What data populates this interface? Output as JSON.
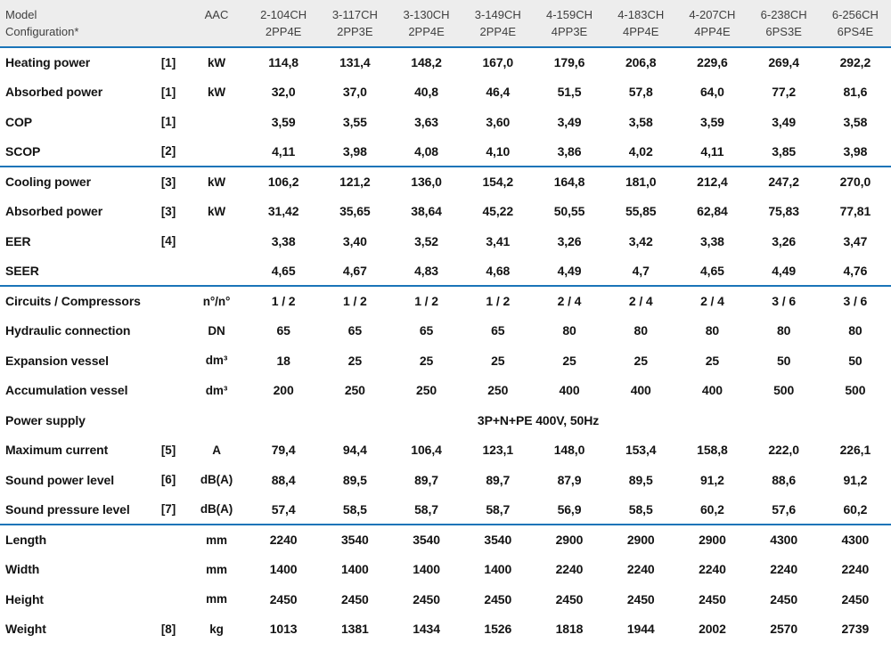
{
  "colors": {
    "header_bg": "#ededed",
    "divider": "#1a74b8",
    "body_text": "#131313",
    "header_text": "#3f3f3f"
  },
  "header": {
    "row_label_line1": "Model",
    "row_label_line2": "Configuration*",
    "aac_label": "AAC",
    "models": [
      {
        "name": "2-104CH",
        "config": "2PP4E"
      },
      {
        "name": "3-117CH",
        "config": "2PP3E"
      },
      {
        "name": "3-130CH",
        "config": "2PP4E"
      },
      {
        "name": "3-149CH",
        "config": "2PP4E"
      },
      {
        "name": "4-159CH",
        "config": "4PP3E"
      },
      {
        "name": "4-183CH",
        "config": "4PP4E"
      },
      {
        "name": "4-207CH",
        "config": "4PP4E"
      },
      {
        "name": "6-238CH",
        "config": "6PS3E"
      },
      {
        "name": "6-256CH",
        "config": "6PS4E"
      }
    ]
  },
  "sections": [
    {
      "name": "heating-performance",
      "rows": [
        {
          "label": "Heating power",
          "note": "[1]",
          "unit": "kW",
          "values": [
            "114,8",
            "131,4",
            "148,2",
            "167,0",
            "179,6",
            "206,8",
            "229,6",
            "269,4",
            "292,2"
          ]
        },
        {
          "label": "Absorbed power",
          "note": "[1]",
          "unit": "kW",
          "values": [
            "32,0",
            "37,0",
            "40,8",
            "46,4",
            "51,5",
            "57,8",
            "64,0",
            "77,2",
            "81,6"
          ]
        },
        {
          "label": "COP",
          "note": "[1]",
          "unit": "",
          "values": [
            "3,59",
            "3,55",
            "3,63",
            "3,60",
            "3,49",
            "3,58",
            "3,59",
            "3,49",
            "3,58"
          ]
        },
        {
          "label": "SCOP",
          "note": "[2]",
          "unit": "",
          "values": [
            "4,11",
            "3,98",
            "4,08",
            "4,10",
            "3,86",
            "4,02",
            "4,11",
            "3,85",
            "3,98"
          ]
        }
      ]
    },
    {
      "name": "cooling-performance",
      "rows": [
        {
          "label": "Cooling power",
          "note": "[3]",
          "unit": "kW",
          "values": [
            "106,2",
            "121,2",
            "136,0",
            "154,2",
            "164,8",
            "181,0",
            "212,4",
            "247,2",
            "270,0"
          ]
        },
        {
          "label": "Absorbed power",
          "note": "[3]",
          "unit": "kW",
          "values": [
            "31,42",
            "35,65",
            "38,64",
            "45,22",
            "50,55",
            "55,85",
            "62,84",
            "75,83",
            "77,81"
          ]
        },
        {
          "label": "EER",
          "note": "[4]",
          "unit": "",
          "values": [
            "3,38",
            "3,40",
            "3,52",
            "3,41",
            "3,26",
            "3,42",
            "3,38",
            "3,26",
            "3,47"
          ]
        },
        {
          "label": "SEER",
          "note": "",
          "unit": "",
          "values": [
            "4,65",
            "4,67",
            "4,83",
            "4,68",
            "4,49",
            "4,7",
            "4,65",
            "4,49",
            "4,76"
          ]
        }
      ]
    },
    {
      "name": "general-data",
      "rows": [
        {
          "label": "Circuits / Compressors",
          "note": "",
          "unit": "n°/n°",
          "values": [
            "1 / 2",
            "1 / 2",
            "1 / 2",
            "1 / 2",
            "2 / 4",
            "2 / 4",
            "2 / 4",
            "3 / 6",
            "3 / 6"
          ]
        },
        {
          "label": "Hydraulic connection",
          "note": "",
          "unit": "DN",
          "values": [
            "65",
            "65",
            "65",
            "65",
            "80",
            "80",
            "80",
            "80",
            "80"
          ]
        },
        {
          "label": "Expansion vessel",
          "note": "",
          "unit": "dm³",
          "values": [
            "18",
            "25",
            "25",
            "25",
            "25",
            "25",
            "25",
            "50",
            "50"
          ]
        },
        {
          "label": "Accumulation vessel",
          "note": "",
          "unit": "dm³",
          "values": [
            "200",
            "250",
            "250",
            "250",
            "400",
            "400",
            "400",
            "500",
            "500"
          ]
        },
        {
          "label": "Power supply",
          "note": "",
          "unit": "",
          "span_value": "3P+N+PE 400V, 50Hz"
        },
        {
          "label": "Maximum current",
          "note": "[5]",
          "unit": "A",
          "values": [
            "79,4",
            "94,4",
            "106,4",
            "123,1",
            "148,0",
            "153,4",
            "158,8",
            "222,0",
            "226,1"
          ]
        },
        {
          "label": "Sound power level",
          "note": "[6]",
          "unit": "dB(A)",
          "values": [
            "88,4",
            "89,5",
            "89,7",
            "89,7",
            "87,9",
            "89,5",
            "91,2",
            "88,6",
            "91,2"
          ]
        },
        {
          "label": "Sound pressure level",
          "note": "[7]",
          "unit": "dB(A)",
          "values": [
            "57,4",
            "58,5",
            "58,7",
            "58,7",
            "56,9",
            "58,5",
            "60,2",
            "57,6",
            "60,2"
          ]
        }
      ]
    },
    {
      "name": "dimensions",
      "rows": [
        {
          "label": "Length",
          "note": "",
          "unit": "mm",
          "values": [
            "2240",
            "3540",
            "3540",
            "3540",
            "2900",
            "2900",
            "2900",
            "4300",
            "4300"
          ]
        },
        {
          "label": "Width",
          "note": "",
          "unit": "mm",
          "values": [
            "1400",
            "1400",
            "1400",
            "1400",
            "2240",
            "2240",
            "2240",
            "2240",
            "2240"
          ]
        },
        {
          "label": "Height",
          "note": "",
          "unit": "mm",
          "values": [
            "2450",
            "2450",
            "2450",
            "2450",
            "2450",
            "2450",
            "2450",
            "2450",
            "2450"
          ]
        },
        {
          "label": "Weight",
          "note": "[8]",
          "unit": "kg",
          "values": [
            "1013",
            "1381",
            "1434",
            "1526",
            "1818",
            "1944",
            "2002",
            "2570",
            "2739"
          ]
        }
      ]
    }
  ]
}
